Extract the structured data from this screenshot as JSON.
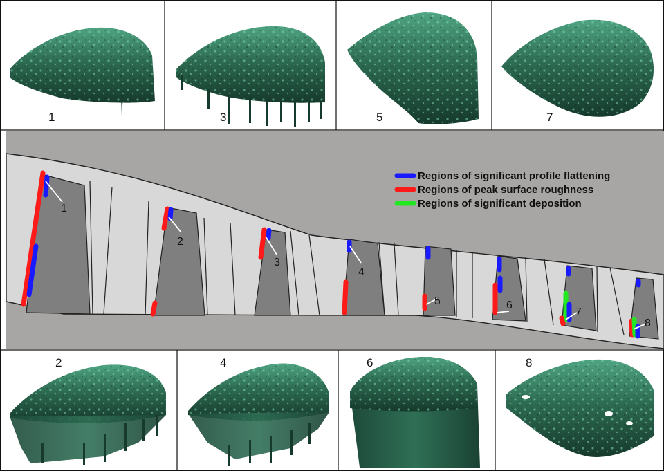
{
  "legend": [
    {
      "label": "Regions of significant profile flattening",
      "color": "#1a1aff"
    },
    {
      "label": "Regions of peak surface roughness",
      "color": "#ff1a1a"
    },
    {
      "label": "Regions of significant deposition",
      "color": "#22e822"
    }
  ],
  "top_panels": [
    {
      "number": "1"
    },
    {
      "number": "3"
    },
    {
      "number": "5"
    },
    {
      "number": "7"
    }
  ],
  "bottom_panels": [
    {
      "number": "2"
    },
    {
      "number": "4"
    },
    {
      "number": "6"
    },
    {
      "number": "8"
    }
  ],
  "calibrator_labels": [
    "1",
    "2",
    "3",
    "4",
    "5",
    "6",
    "7",
    "8"
  ],
  "colors": {
    "channel_background": "#a8a6a4",
    "spacer_light": "#d8d8d8",
    "spacer_dark": "#7f7f7f",
    "surface_green": "#2d6b52",
    "surface_highlight": "#7fd8b0",
    "surface_shadow": "#163a2c"
  }
}
